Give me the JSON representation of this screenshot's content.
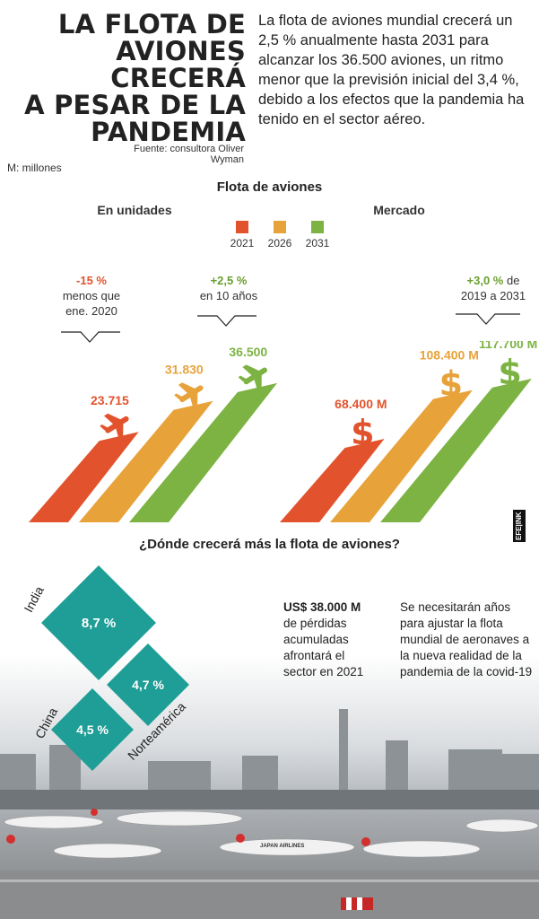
{
  "title_lines": [
    "LA FLOTA DE",
    "AVIONES CRECERÁ",
    "A PESAR DE LA",
    "PANDEMIA"
  ],
  "intro": "La flota de aviones mundial crecerá un 2,5 % anualmente hasta 2031 para alcanzar los 36.500 aviones, un ritmo menor que la previsión inicial del 3,4 %, debido a los efectos que la pandemia ha tenido en el sector aéreo.",
  "source": "Fuente: consultora Oliver Wyman",
  "unit_note": "M: millones",
  "chart_title": "Flota de aviones",
  "legend": [
    {
      "label": "2021",
      "color": "#e2532d"
    },
    {
      "label": "2026",
      "color": "#e8a23a"
    },
    {
      "label": "2031",
      "color": "#7cb342"
    }
  ],
  "chart_data": [
    {
      "type": "bar",
      "title": "En unidades",
      "categories": [
        "2021",
        "2026",
        "2031"
      ],
      "values": [
        23715,
        31830,
        36500
      ],
      "value_labels": [
        "23.715",
        "31.830",
        "36.500"
      ],
      "ylim": [
        0,
        40000
      ]
    },
    {
      "type": "bar",
      "title": "Mercado",
      "categories": [
        "2021",
        "2026",
        "2031"
      ],
      "values": [
        68400,
        108400,
        117700
      ],
      "value_labels": [
        "68.400 M",
        "108.400 M",
        "117.700 M"
      ],
      "ylim": [
        0,
        125000
      ]
    }
  ],
  "callouts": {
    "left_a": {
      "pct": "-15 %",
      "text1": "menos que",
      "text2": "ene. 2020",
      "color": "#e2532d"
    },
    "left_b": {
      "pct": "+2,5 %",
      "text": "en 10 años",
      "color": "#6a9f2f"
    },
    "right": {
      "pct": "+3,0 %",
      "suffix": " de",
      "text": "2019 a 2031",
      "color": "#6a9f2f"
    }
  },
  "map_title": "¿Dónde crecerá más la flota de aviones?",
  "regions": [
    {
      "name": "India",
      "value": "8,7 %"
    },
    {
      "name": "Norteamérica",
      "value": "4,7 %"
    },
    {
      "name": "China",
      "value": "4,5 %"
    }
  ],
  "stat_left": {
    "amount": "US$ 38.000 M",
    "lines": [
      "de pérdidas",
      "acumuladas",
      "afrontará el",
      "sector en 2021"
    ]
  },
  "stat_right": {
    "lines": [
      "Se necesitarán años",
      "para ajustar la flota",
      "mundial de aeronaves a",
      "la nueva realidad de la",
      "pandemia de la covid-19"
    ]
  },
  "photo_text": "JAPAN AIRLINES",
  "brand": "EFE|INK",
  "teal": "#1e9e96"
}
